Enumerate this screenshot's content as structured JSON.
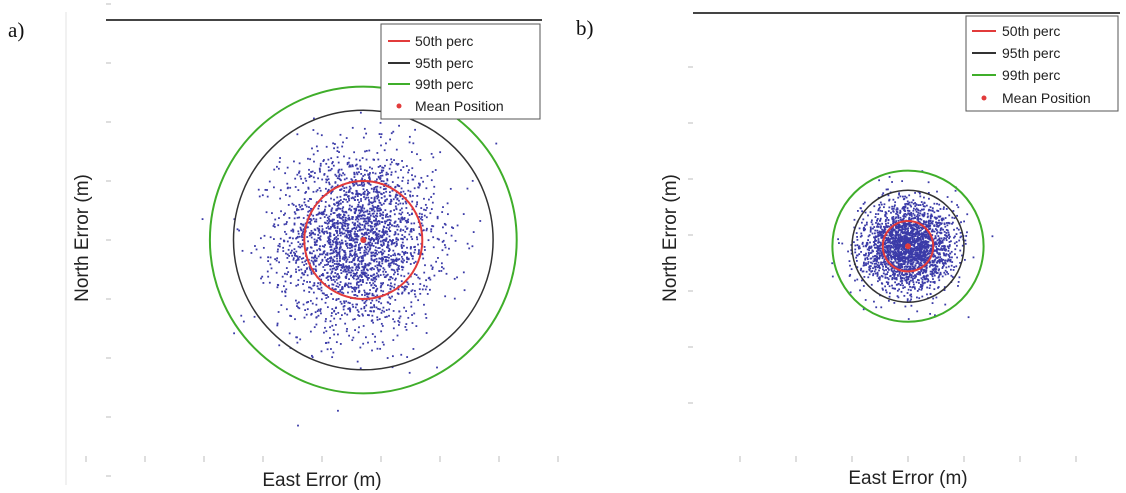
{
  "panels": [
    {
      "label": "a)",
      "xlabel": "East Error (m)",
      "ylabel": "North Error (m)",
      "legend": [
        "50th perc",
        "95th perc",
        "99th perc",
        "Mean Position"
      ]
    },
    {
      "label": "b)",
      "xlabel": "East Error (m)",
      "ylabel": "North Error (m)",
      "legend": [
        "50th perc",
        "95th perc",
        "99th perc",
        "Mean Position"
      ]
    }
  ],
  "colors": {
    "p50": "#e23b3b",
    "p95": "#333333",
    "p99": "#3fae2a",
    "points": "#3b3ba8",
    "mean": "#e23b3b"
  },
  "chart_data": [
    {
      "type": "scatter",
      "xlabel": "East Error (m)",
      "ylabel": "North Error (m)",
      "mean_position": [
        0.7,
        0.0
      ],
      "percentile_radii": {
        "50th perc": 1.0,
        "95th perc": 2.2,
        "99th perc": 2.6
      },
      "point_spread": {
        "center": [
          0.6,
          0.0
        ],
        "sigma_x": 0.65,
        "sigma_y": 0.75,
        "count": 2600
      },
      "xlim": [
        -4,
        4
      ],
      "ylim": [
        -4,
        4
      ],
      "legend_position": "top-right"
    },
    {
      "type": "scatter",
      "xlabel": "East Error (m)",
      "ylabel": "North Error (m)",
      "mean_position": [
        0.0,
        -0.2
      ],
      "percentile_radii": {
        "50th perc": 0.45,
        "95th perc": 1.0,
        "99th perc": 1.35
      },
      "point_spread": {
        "center": [
          0.0,
          -0.2
        ],
        "sigma_x": 0.4,
        "sigma_y": 0.38,
        "count": 2400
      },
      "xlim": [
        -3.5,
        3.5
      ],
      "ylim": [
        -3.5,
        3.5
      ],
      "legend_position": "top-right"
    }
  ]
}
